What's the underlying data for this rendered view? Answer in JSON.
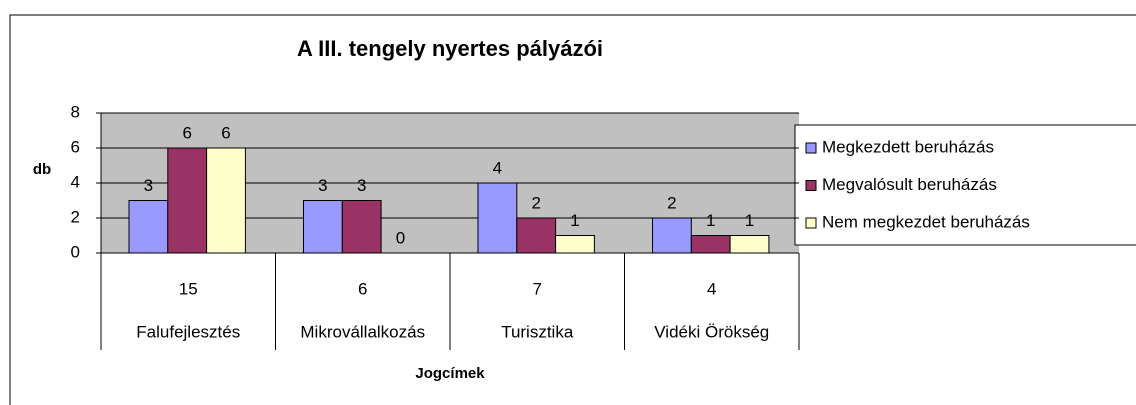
{
  "chart_data": {
    "type": "bar",
    "title": "A III. tengely nyertes pályázói",
    "y_label": "db",
    "x_label": "Jogcímek",
    "categories": [
      "Falufejlesztés",
      "Mikrovállalkozás",
      "Turisztika",
      "Vidéki Örökség"
    ],
    "category_totals": [
      15,
      6,
      7,
      4
    ],
    "series": [
      {
        "name": "Megkezdett beruházás",
        "color": "#9999ff",
        "values": [
          3,
          3,
          4,
          2
        ]
      },
      {
        "name": "Megvalósult beruházás",
        "color": "#993366",
        "values": [
          6,
          3,
          2,
          1
        ]
      },
      {
        "name": "Nem megkezdet beruházás",
        "color": "#ffffcc",
        "values": [
          6,
          0,
          1,
          1
        ]
      }
    ],
    "ylim": [
      0,
      8
    ],
    "yticks": [
      0,
      2,
      4,
      6,
      8
    ],
    "grid": true,
    "legend": "right"
  }
}
